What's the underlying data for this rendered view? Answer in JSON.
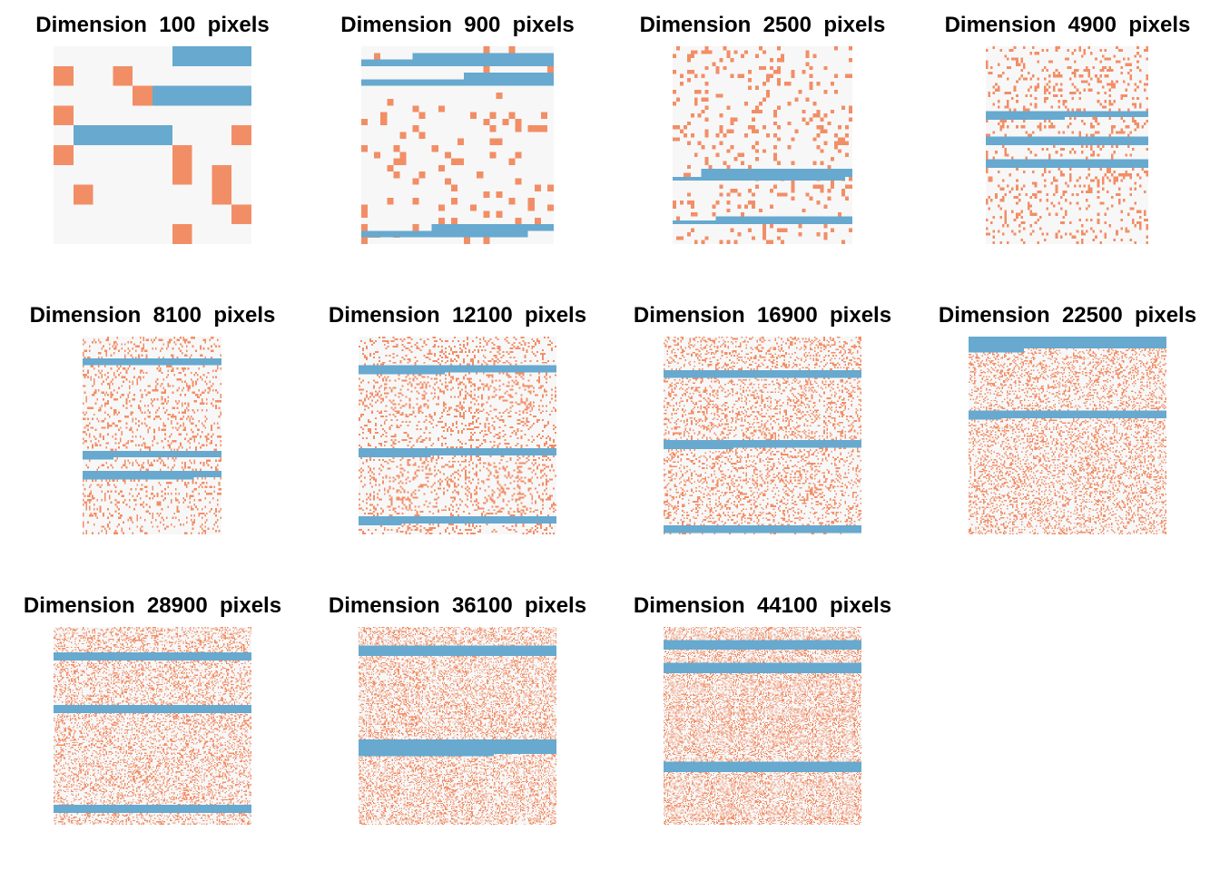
{
  "colors": {
    "background": "#f7f7f7",
    "occupied": "#f28e66",
    "band": "#67a9cf"
  },
  "chart_data": [
    {
      "type": "heatmap",
      "title": "Dimension  100  pixels",
      "grid_size": 10,
      "density": 0.12,
      "bands": [
        {
          "row": 0,
          "thickness": 1,
          "segments": [
            [
              6,
              10
            ]
          ]
        },
        {
          "row": 2,
          "thickness": 1,
          "segments": [
            [
              5,
              10
            ]
          ]
        },
        {
          "row": 4,
          "thickness": 1,
          "segments": [
            [
              1,
              6
            ]
          ]
        }
      ],
      "orange_cells": [
        [
          1,
          3
        ],
        [
          2,
          4
        ],
        [
          3,
          0
        ],
        [
          4,
          9
        ],
        [
          5,
          0
        ],
        [
          5,
          6
        ],
        [
          6,
          6
        ],
        [
          6,
          8
        ],
        [
          7,
          1
        ],
        [
          7,
          8
        ],
        [
          8,
          9
        ],
        [
          9,
          6
        ],
        [
          1,
          0
        ]
      ]
    },
    {
      "type": "heatmap",
      "title": "Dimension  900  pixels",
      "grid_size": 30,
      "density": 0.1,
      "bands": [
        {
          "row": 1,
          "thickness": 1,
          "segments": [
            [
              8,
              30
            ]
          ]
        },
        {
          "row": 2,
          "thickness": 1,
          "segments": [
            [
              0,
              30
            ]
          ]
        },
        {
          "row": 4,
          "thickness": 1,
          "segments": [
            [
              16,
              30
            ]
          ]
        },
        {
          "row": 5,
          "thickness": 1,
          "segments": [
            [
              0,
              30
            ]
          ]
        },
        {
          "row": 27,
          "thickness": 1,
          "segments": [
            [
              11,
              30
            ]
          ]
        },
        {
          "row": 28,
          "thickness": 1,
          "segments": [
            [
              0,
              26
            ]
          ]
        }
      ]
    },
    {
      "type": "heatmap",
      "title": "Dimension  2500  pixels",
      "grid_size": 50,
      "density": 0.14,
      "bands": [
        {
          "row": 31,
          "thickness": 2,
          "segments": [
            [
              8,
              50
            ]
          ]
        },
        {
          "row": 33,
          "thickness": 1,
          "segments": [
            [
              0,
              48
            ]
          ]
        },
        {
          "row": 43,
          "thickness": 1,
          "segments": [
            [
              12,
              50
            ]
          ]
        },
        {
          "row": 44,
          "thickness": 1,
          "segments": [
            [
              0,
              50
            ]
          ]
        }
      ]
    },
    {
      "type": "heatmap",
      "title": "Dimension  4900  pixels",
      "grid_size": 70,
      "density": 0.16,
      "bands": [
        {
          "row": 23,
          "thickness": 2,
          "segments": [
            [
              0,
              70
            ]
          ]
        },
        {
          "row": 24,
          "thickness": 2,
          "segments": [
            [
              0,
              34
            ]
          ]
        },
        {
          "row": 32,
          "thickness": 2,
          "segments": [
            [
              0,
              70
            ]
          ]
        },
        {
          "row": 34,
          "thickness": 1,
          "segments": [
            [
              0,
              70
            ]
          ]
        },
        {
          "row": 40,
          "thickness": 3,
          "segments": [
            [
              0,
              70
            ]
          ]
        }
      ]
    },
    {
      "type": "heatmap",
      "title": "Dimension  8100  pixels",
      "grid_size": 90,
      "density": 0.18,
      "bands": [
        {
          "row": 10,
          "thickness": 3,
          "segments": [
            [
              0,
              90
            ]
          ]
        },
        {
          "row": 12,
          "thickness": 1,
          "segments": [
            [
              0,
              14
            ]
          ]
        },
        {
          "row": 52,
          "thickness": 3,
          "segments": [
            [
              0,
              90
            ]
          ]
        },
        {
          "row": 55,
          "thickness": 1,
          "segments": [
            [
              0,
              20
            ]
          ]
        },
        {
          "row": 61,
          "thickness": 3,
          "segments": [
            [
              0,
              90
            ]
          ]
        },
        {
          "row": 64,
          "thickness": 1,
          "segments": [
            [
              0,
              72
            ]
          ]
        }
      ]
    },
    {
      "type": "heatmap",
      "title": "Dimension  12100  pixels",
      "grid_size": 110,
      "density": 0.2,
      "bands": [
        {
          "row": 16,
          "thickness": 4,
          "segments": [
            [
              0,
              110
            ]
          ]
        },
        {
          "row": 20,
          "thickness": 1,
          "segments": [
            [
              0,
              48
            ]
          ]
        },
        {
          "row": 62,
          "thickness": 4,
          "segments": [
            [
              0,
              110
            ]
          ]
        },
        {
          "row": 66,
          "thickness": 1,
          "segments": [
            [
              0,
              40
            ]
          ]
        },
        {
          "row": 100,
          "thickness": 4,
          "segments": [
            [
              0,
              110
            ]
          ]
        },
        {
          "row": 104,
          "thickness": 1,
          "segments": [
            [
              0,
              24
            ]
          ]
        }
      ]
    },
    {
      "type": "heatmap",
      "title": "Dimension  16900  pixels",
      "grid_size": 130,
      "density": 0.22,
      "bands": [
        {
          "row": 22,
          "thickness": 5,
          "segments": [
            [
              0,
              130
            ]
          ]
        },
        {
          "row": 68,
          "thickness": 5,
          "segments": [
            [
              0,
              130
            ]
          ]
        },
        {
          "row": 73,
          "thickness": 1,
          "segments": [
            [
              0,
              46
            ]
          ]
        },
        {
          "row": 124,
          "thickness": 5,
          "segments": [
            [
              0,
              130
            ]
          ]
        }
      ]
    },
    {
      "type": "heatmap",
      "title": "Dimension  22500  pixels",
      "grid_size": 150,
      "density": 0.24,
      "bands": [
        {
          "row": 0,
          "thickness": 9,
          "segments": [
            [
              0,
              150
            ]
          ]
        },
        {
          "row": 9,
          "thickness": 3,
          "segments": [
            [
              0,
              42
            ]
          ]
        },
        {
          "row": 56,
          "thickness": 6,
          "segments": [
            [
              0,
              150
            ]
          ]
        },
        {
          "row": 62,
          "thickness": 1,
          "segments": [
            [
              0,
              24
            ]
          ]
        }
      ]
    },
    {
      "type": "heatmap",
      "title": "Dimension  28900  pixels",
      "grid_size": 170,
      "density": 0.26,
      "bands": [
        {
          "row": 22,
          "thickness": 7,
          "segments": [
            [
              0,
              170
            ]
          ]
        },
        {
          "row": 67,
          "thickness": 7,
          "segments": [
            [
              0,
              170
            ]
          ]
        },
        {
          "row": 153,
          "thickness": 7,
          "segments": [
            [
              0,
              170
            ]
          ]
        }
      ]
    },
    {
      "type": "heatmap",
      "title": "Dimension  36100  pixels",
      "grid_size": 190,
      "density": 0.28,
      "bands": [
        {
          "row": 18,
          "thickness": 10,
          "segments": [
            [
              0,
              190
            ]
          ]
        },
        {
          "row": 108,
          "thickness": 14,
          "segments": [
            [
              0,
              190
            ]
          ]
        },
        {
          "row": 122,
          "thickness": 2,
          "segments": [
            [
              0,
              130
            ]
          ]
        }
      ]
    },
    {
      "type": "heatmap",
      "title": "Dimension  44100  pixels",
      "grid_size": 210,
      "density": 0.3,
      "bands": [
        {
          "row": 14,
          "thickness": 10,
          "segments": [
            [
              0,
              210
            ]
          ]
        },
        {
          "row": 38,
          "thickness": 11,
          "segments": [
            [
              0,
              210
            ]
          ]
        },
        {
          "row": 143,
          "thickness": 11,
          "segments": [
            [
              0,
              210
            ]
          ]
        }
      ]
    }
  ]
}
